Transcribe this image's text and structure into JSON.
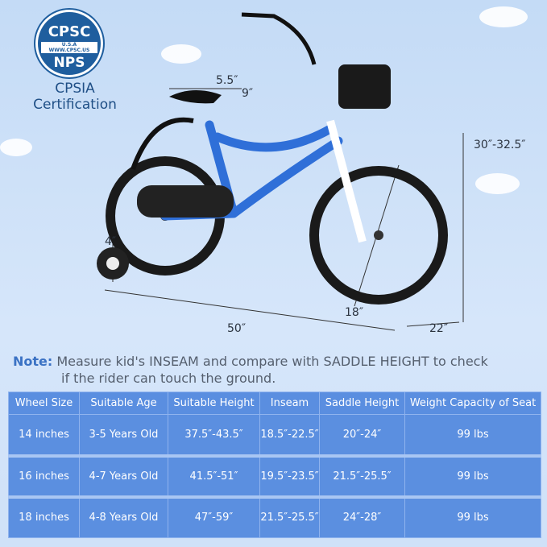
{
  "badge": {
    "top": "CPSC",
    "band": "U.S.A WWW.CPSC.US",
    "bottom": "NPS",
    "caption_line1": "CPSIA",
    "caption_line2": "Certification"
  },
  "dimensions": {
    "seat_length": "5.5″",
    "seat_width": "9″",
    "height": "30″-32.5″",
    "training_wheel": "4″",
    "wheel": "18″",
    "length": "50″",
    "width": "22″"
  },
  "colors": {
    "frame": "#2f6fd8",
    "table": "#5b8fe0",
    "note_label": "#3b72c4"
  },
  "note": {
    "label": "Note:",
    "text": " Measure kid's INSEAM and compare with SADDLE HEIGHT to check",
    "text2": "if the rider can touch the ground."
  },
  "table": {
    "headers": [
      "Wheel Size",
      "Suitable Age",
      "Suitable Height",
      "Inseam",
      "Saddle Height",
      "Weight Capacity of Seat"
    ],
    "rows": [
      [
        "14 inches",
        "3-5 Years Old",
        "37.5″-43.5″",
        "18.5″-22.5″",
        "20″-24″",
        "99 lbs"
      ],
      [
        "16 inches",
        "4-7 Years Old",
        "41.5″-51″",
        "19.5″-23.5″",
        "21.5″-25.5″",
        "99 lbs"
      ],
      [
        "18 inches",
        "4-8 Years Old",
        "47″-59″",
        "21.5″-25.5″",
        "24″-28″",
        "99 lbs"
      ]
    ]
  }
}
